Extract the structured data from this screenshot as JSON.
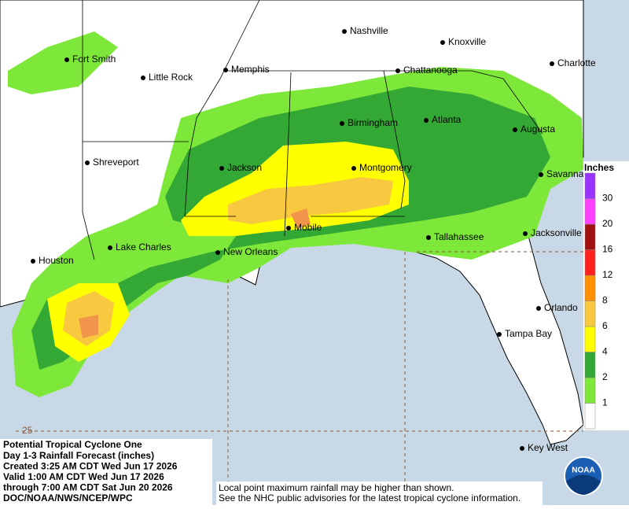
{
  "title_block": {
    "lines": [
      "Potential Tropical Cyclone One",
      "Day 1-3 Rainfall Forecast (inches)",
      "Created 3:25 AM CDT Wed Jun 17 2026",
      "Valid 1:00 AM CDT Wed Jun 17 2026",
      "through 7:00 AM CDT Sat Jun 20 2026",
      "DOC/NOAA/NWS/NCEP/WPC"
    ]
  },
  "notes": [
    "Local point maximum rainfall may be higher than shown.",
    "See the NHC public advisories for the latest tropical cyclone information."
  ],
  "cities": [
    "Nashville",
    "Knoxville",
    "Fort Smith",
    "Little Rock",
    "Memphis",
    "Chattanooga",
    "Charlotte",
    "Birmingham",
    "Atlanta",
    "Augusta",
    "Shreveport",
    "Jackson",
    "Montgomery",
    "Savannah",
    "Mobile",
    "Tallahassee",
    "Jacksonville",
    "Houston",
    "Lake Charles",
    "New Orleans",
    "Orlando",
    "Tampa Bay",
    "Key West"
  ],
  "legend": {
    "title": "Inches",
    "ticks": [
      1,
      2,
      4,
      6,
      8,
      12,
      16,
      20,
      30
    ],
    "colors": [
      "#ffffff",
      "#7ee83a",
      "#34a834",
      "#ffff00",
      "#f8c840",
      "#ff9000",
      "#ff2020",
      "#a01010",
      "#ff40ff",
      "#9933ff"
    ]
  },
  "grid": {
    "latitude_labels": [
      25
    ]
  },
  "logo": "NOAA"
}
